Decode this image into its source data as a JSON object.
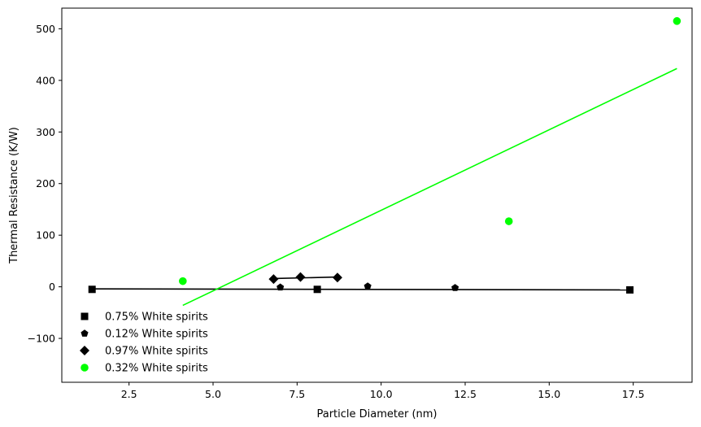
{
  "chart_data": {
    "type": "scatter",
    "title": "",
    "xlabel": "Particle Diameter (nm)",
    "ylabel": "Thermal Resistance (K/W)",
    "xlim": [
      0.5,
      19.25
    ],
    "ylim": [
      -185,
      540
    ],
    "x_ticks": [
      2.5,
      5.0,
      7.5,
      10.0,
      12.5,
      15.0,
      17.5
    ],
    "x_tick_labels": [
      "2.5",
      "5.0",
      "7.5",
      "10.0",
      "12.5",
      "15.0",
      "17.5"
    ],
    "y_ticks": [
      -100,
      0,
      100,
      200,
      300,
      400,
      500
    ],
    "y_tick_labels": [
      "−100",
      "0",
      "100",
      "200",
      "300",
      "400",
      "500"
    ],
    "grid": false,
    "legend_position": "lower-left",
    "series": [
      {
        "name": "0.75% White spirits",
        "marker": "square",
        "color": "#000000",
        "points": [
          [
            1.4,
            -5
          ],
          [
            8.1,
            -5
          ],
          [
            17.4,
            -6
          ]
        ],
        "fit": [
          [
            1.4,
            -4
          ],
          [
            17.4,
            -6
          ]
        ]
      },
      {
        "name": "0.12% White spirits",
        "marker": "pentagon",
        "color": "#000000",
        "points": [
          [
            7.0,
            -1
          ],
          [
            9.6,
            1
          ],
          [
            12.2,
            -2
          ]
        ],
        "fit": []
      },
      {
        "name": "0.97% White spirits",
        "marker": "diamond",
        "color": "#000000",
        "points": [
          [
            6.8,
            15
          ],
          [
            7.6,
            19
          ],
          [
            8.7,
            18
          ]
        ],
        "fit": [
          [
            6.8,
            16
          ],
          [
            8.7,
            19
          ]
        ]
      },
      {
        "name": "0.32% White spirits",
        "marker": "circle",
        "color": "#00ff00",
        "points": [
          [
            4.1,
            11
          ],
          [
            13.8,
            127
          ],
          [
            18.8,
            515
          ]
        ],
        "fit": [
          [
            4.1,
            -36
          ],
          [
            18.8,
            423
          ]
        ]
      }
    ]
  }
}
